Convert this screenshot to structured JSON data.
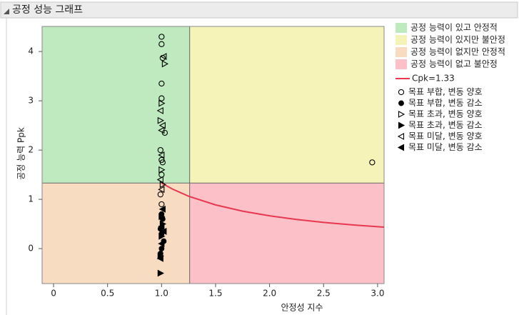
{
  "chart_data": {
    "type": "scatter",
    "title": "공정 성능 그래프",
    "x_label": "안정성 지수",
    "y_label": "공정 능력 Ppk",
    "xlim": [
      -0.106,
      3.06
    ],
    "ylim": [
      -0.71,
      4.51
    ],
    "xticks": [
      0,
      0.5,
      {
        "value": 1,
        "label": "1.0"
      },
      1.5,
      {
        "value": 2,
        "label": "2.0"
      },
      2.5,
      {
        "value": 3,
        "label": "3.0"
      }
    ],
    "yticks": [
      0,
      1,
      2,
      3,
      4
    ],
    "x_split": 1.26,
    "y_split": 1.33,
    "regions": [
      {
        "name": "공정 능력이 있고 안정적",
        "color": "#bfeac0"
      },
      {
        "name": "공정 능력이 있지만 불안정",
        "color": "#f6f3b8"
      },
      {
        "name": "공정 능력이 없지만 안정적",
        "color": "#f8dcc2"
      },
      {
        "name": "공정 능력이 없고 불안정",
        "color": "#fbc0c8"
      }
    ],
    "curve": {
      "name": "Cpk=1.33",
      "color": "#e8384f",
      "x": [
        1,
        1.1,
        1.25,
        1.5,
        1.75,
        2,
        2.25,
        2.5,
        2.75,
        3.06
      ],
      "values": [
        1.33,
        1.209,
        1.064,
        0.887,
        0.76,
        0.665,
        0.591,
        0.532,
        0.484,
        0.435
      ]
    },
    "series": [
      {
        "name": "목표 부합, 변동 양호",
        "marker": "circle-open",
        "x": [
          1,
          1,
          1.01,
          1,
          1,
          1.03,
          0.99,
          1,
          1.01,
          1,
          0.99,
          1,
          2.95
        ],
        "values": [
          4.3,
          4.15,
          3.87,
          3.35,
          3.05,
          2.35,
          2.0,
          1.8,
          1.75,
          1.5,
          1.1,
          0.9,
          1.75
        ]
      },
      {
        "name": "목표 부합, 변동 감소",
        "marker": "circle-filled",
        "x": [
          1,
          1.01,
          0.99,
          1,
          1.02,
          1,
          0.99
        ],
        "values": [
          0.7,
          0.6,
          0.4,
          0.3,
          0.15,
          0.0,
          -0.1
        ]
      },
      {
        "name": "목표 초과, 변동 양호",
        "marker": "right-open",
        "x": [
          1.03,
          1,
          0.99,
          1,
          1.01
        ],
        "values": [
          3.75,
          2.95,
          2.6,
          1.6,
          1.3
        ]
      },
      {
        "name": "목표 초과, 변동 감소",
        "marker": "right-filled",
        "x": [
          0.99,
          1,
          1.01,
          0.99,
          1
        ],
        "values": [
          -0.5,
          0.25,
          0.5,
          -0.15,
          0.65
        ]
      },
      {
        "name": "목표 미달, 변동 양호",
        "marker": "left-open",
        "x": [
          1.02,
          0.99,
          1,
          1.01,
          1,
          0.99,
          1
        ],
        "values": [
          3.9,
          2.8,
          2.4,
          2.5,
          1.9,
          1.4,
          1.2
        ]
      },
      {
        "name": "목표 미달, 변동 감소",
        "marker": "left-filled",
        "x": [
          1,
          1.01,
          0.99,
          1,
          1.02
        ],
        "values": [
          0.1,
          0.8,
          -0.2,
          0.45,
          0.35
        ]
      }
    ]
  }
}
